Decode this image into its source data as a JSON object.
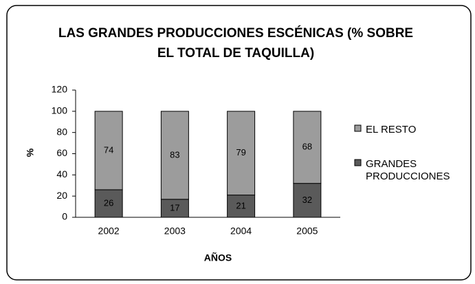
{
  "chart_data": {
    "type": "stacked_bar",
    "title": "LAS GRANDES PRODUCCIONES ESCÉNICAS (% SOBRE EL TOTAL DE TAQUILLA)",
    "x_label": "AÑOS",
    "y_label": "%",
    "categories": [
      "2002",
      "2003",
      "2004",
      "2005"
    ],
    "series": [
      {
        "name": "GRANDES PRODUCCIONES",
        "color": "#5a5a5a",
        "values": [
          26,
          17,
          21,
          32
        ]
      },
      {
        "name": "EL RESTO",
        "color": "#9c9c9c",
        "values": [
          74,
          83,
          79,
          68
        ]
      }
    ],
    "ylim": [
      0,
      120
    ],
    "yticks": [
      0,
      20,
      40,
      60,
      80,
      100,
      120
    ],
    "legend": "right"
  }
}
